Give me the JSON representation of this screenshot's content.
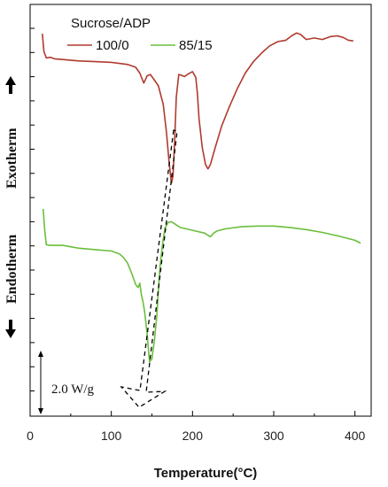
{
  "chart_data": {
    "type": "line",
    "xlabel": "Temperature(°C)",
    "xlim": [
      0,
      420
    ],
    "xticks": [
      0,
      100,
      200,
      300,
      400
    ],
    "ylabel_top": "Exotherm",
    "ylabel_bottom": "Endotherm",
    "legend_title": "Sucrose/ADP",
    "legend_placement": "top-left",
    "scale_bar_label": "2.0 W/g",
    "grid": false,
    "series": [
      {
        "name": "100/0",
        "color": "#b03a2e",
        "x": [
          15,
          17,
          20,
          25,
          30,
          40,
          60,
          80,
          100,
          120,
          130,
          135,
          140,
          142,
          144,
          148,
          152,
          158,
          164,
          168,
          171,
          174,
          176,
          178,
          180,
          183,
          186,
          190,
          195,
          200,
          204,
          206,
          208,
          212,
          216,
          219,
          222,
          228,
          236,
          245,
          255,
          265,
          275,
          285,
          295,
          305,
          315,
          322,
          328,
          333,
          340,
          350,
          360,
          370,
          378,
          385,
          392,
          398
        ],
        "y": [
          11.95,
          10.7,
          10.25,
          10.3,
          10.2,
          10.15,
          10.05,
          10.0,
          9.95,
          9.8,
          9.6,
          9.2,
          8.5,
          8.75,
          9.0,
          9.1,
          8.8,
          8.3,
          7.0,
          5.0,
          3.0,
          1.5,
          2.0,
          4.5,
          7.5,
          9.1,
          9.05,
          8.95,
          9.15,
          9.3,
          8.9,
          7.8,
          6.0,
          4.0,
          2.8,
          2.5,
          2.8,
          4.0,
          5.5,
          6.8,
          8.1,
          9.2,
          10.0,
          10.6,
          11.1,
          11.4,
          11.5,
          11.8,
          12.0,
          11.9,
          11.55,
          11.65,
          11.55,
          11.75,
          11.8,
          11.7,
          11.5,
          11.45
        ]
      },
      {
        "name": "85/15",
        "color": "#6abf3c",
        "x": [
          16,
          18,
          20,
          24,
          30,
          40,
          60,
          80,
          100,
          110,
          115,
          120,
          125,
          130,
          133,
          135,
          137,
          139,
          141,
          144,
          147,
          150,
          153,
          156,
          158,
          160,
          163,
          166,
          170,
          174,
          178,
          185,
          200,
          215,
          222,
          226,
          230,
          240,
          260,
          280,
          300,
          320,
          340,
          360,
          380,
          400,
          407
        ],
        "y": [
          -0.3,
          -1.8,
          -2.8,
          -2.85,
          -2.85,
          -2.85,
          -3.05,
          -3.15,
          -3.25,
          -3.45,
          -3.7,
          -4.1,
          -4.8,
          -5.6,
          -5.8,
          -5.5,
          -6.3,
          -6.8,
          -7.5,
          -9.0,
          -11.0,
          -10.8,
          -9.5,
          -7.8,
          -6.0,
          -4.3,
          -2.8,
          -1.65,
          -1.25,
          -1.2,
          -1.35,
          -1.6,
          -1.8,
          -2.0,
          -2.25,
          -2.0,
          -1.85,
          -1.7,
          -1.55,
          -1.5,
          -1.5,
          -1.6,
          -1.75,
          -1.95,
          -2.2,
          -2.5,
          -2.7
        ]
      }
    ]
  }
}
